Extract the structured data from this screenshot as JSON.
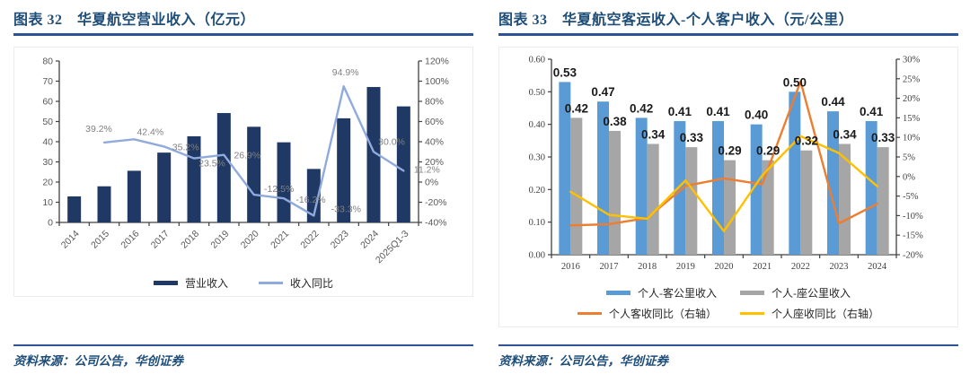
{
  "figures": [
    {
      "label": "图表 32",
      "title": "图表 32　华夏航空营业收入（亿元）",
      "source": "资料来源：公司公告，华创证券",
      "accent_color": "#2E5395",
      "chart_data": {
        "type": "bar",
        "subtype": "combo-bar-line-dual-axis",
        "title": "华夏航空营业收入（亿元）",
        "categories": [
          "2014",
          "2015",
          "2016",
          "2017",
          "2018",
          "2019",
          "2020",
          "2021",
          "2022",
          "2023",
          "2024",
          "2025Q1-3"
        ],
        "series": [
          {
            "name": "营业收入",
            "kind": "bar",
            "axis": "left",
            "color": "#1F3864",
            "values": [
              12.9,
              17.9,
              25.6,
              34.6,
              42.7,
              54.2,
              47.4,
              39.7,
              26.5,
              51.6,
              67.1,
              57.5
            ]
          },
          {
            "name": "收入同比",
            "kind": "line",
            "axis": "right",
            "color": "#8FAADC",
            "values": [
              null,
              39.2,
              42.4,
              35.2,
              23.5,
              26.9,
              -12.5,
              -16.2,
              -33.3,
              94.9,
              30.0,
              11.2
            ],
            "point_labels": [
              "",
              "39.2%",
              "42.4%",
              "35.2%",
              "23.5%",
              "26.9%",
              "-12.5%",
              "-16.2%",
              "-33.3%",
              "94.9%",
              "30.0%",
              "11.2%"
            ]
          }
        ],
        "left_axis": {
          "min": 0,
          "max": 80,
          "step": 10,
          "tick_labels": [
            "0",
            "10",
            "20",
            "30",
            "40",
            "50",
            "60",
            "70",
            "80"
          ]
        },
        "right_axis": {
          "min": -40,
          "max": 120,
          "step": 20,
          "tick_labels": [
            "-40%",
            "-20%",
            "0%",
            "20%",
            "40%",
            "60%",
            "80%",
            "100%",
            "120%"
          ]
        },
        "grid": false,
        "legend_position": "bottom"
      }
    },
    {
      "label": "图表 33",
      "title": "图表 33　华夏航空客运收入-个人客户收入（元/公里）",
      "source": "资料来源：公司公告，华创证券",
      "accent_color": "#2E5395",
      "chart_data": {
        "type": "bar",
        "subtype": "combo-grouped-bar-line-dual-axis",
        "title": "华夏航空客运收入-个人客户收入（元/公里）",
        "categories": [
          "2016",
          "2017",
          "2018",
          "2019",
          "2020",
          "2021",
          "2022",
          "2023",
          "2024"
        ],
        "series": [
          {
            "name": "个人-客公里收入",
            "kind": "bar",
            "axis": "left",
            "color": "#5B9BD5",
            "values": [
              0.53,
              0.47,
              0.42,
              0.41,
              0.41,
              0.4,
              0.5,
              0.44,
              0.41
            ],
            "value_labels": [
              "0.53",
              "0.47",
              "0.42",
              "0.41",
              "0.41",
              "0.40",
              "0.50",
              "0.44",
              "0.41"
            ]
          },
          {
            "name": "个人-座公里收入",
            "kind": "bar",
            "axis": "left",
            "color": "#A6A6A6",
            "values": [
              0.42,
              0.38,
              0.34,
              0.33,
              0.29,
              0.29,
              0.32,
              0.34,
              0.33
            ],
            "value_labels": [
              "0.42",
              "0.38",
              "0.34",
              "0.33",
              "0.29",
              "0.29",
              "0.32",
              "0.34",
              "0.33"
            ]
          },
          {
            "name": "个人客收同比（右轴）",
            "kind": "line",
            "axis": "right",
            "color": "#ED7D31",
            "values": [
              -12.5,
              -12.2,
              -10.6,
              -2.4,
              -0.5,
              -2.0,
              24.3,
              -12.0,
              -7.0
            ]
          },
          {
            "name": "个人座收同比（右轴）",
            "kind": "line",
            "axis": "right",
            "color": "#FFC000",
            "values": [
              -3.9,
              -9.8,
              -10.8,
              -1.0,
              -14.0,
              0.3,
              10.3,
              6.0,
              -2.5
            ]
          }
        ],
        "left_axis": {
          "min": 0,
          "max": 0.6,
          "step": 0.1,
          "tick_labels": [
            "0.00",
            "0.10",
            "0.20",
            "0.30",
            "0.40",
            "0.50",
            "0.60"
          ]
        },
        "right_axis": {
          "min": -20,
          "max": 30,
          "step": 5,
          "tick_labels": [
            "-20%",
            "-15%",
            "-10%",
            "-5%",
            "0%",
            "5%",
            "10%",
            "15%",
            "20%",
            "25%",
            "30%"
          ]
        },
        "grid": false,
        "legend_position": "bottom"
      }
    }
  ]
}
